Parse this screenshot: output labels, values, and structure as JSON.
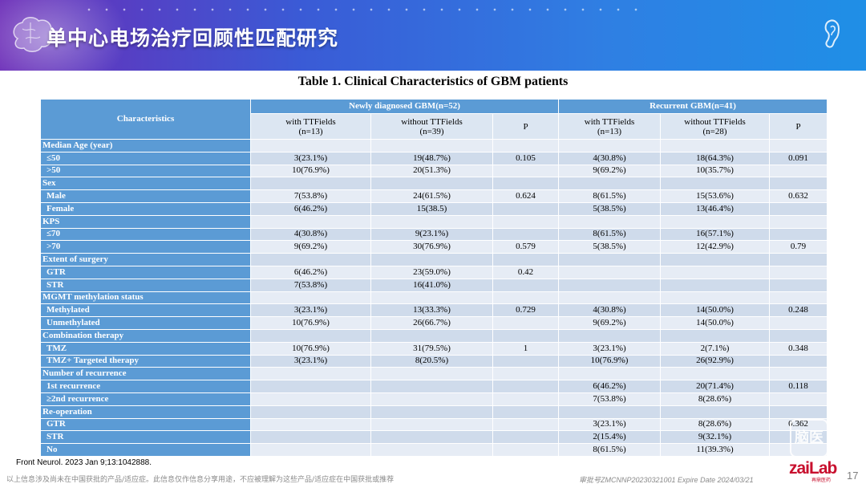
{
  "header": {
    "title": "单中心电场治疗回顾性匹配研究"
  },
  "icons": [
    "brain-icon",
    "ear-icon"
  ],
  "colors": {
    "header_start": "#6a2bb7",
    "header_end": "#1f8fe6",
    "table_header": "#5b9bd5",
    "row_light": "#e6ecf5",
    "row_dark": "#cfdbeb",
    "logo": "#c8102e"
  },
  "table": {
    "title": "Table 1. Clinical Characteristics of GBM patients",
    "characteristics_label": "Characteristics",
    "groups": [
      "Newly diagnosed GBM(n=52)",
      "Recurrent GBM(n=41)"
    ],
    "sub_headers": [
      [
        "with TTFields",
        "(n=13)"
      ],
      [
        "without TTFields",
        "(n=39)"
      ],
      [
        "P",
        ""
      ],
      [
        "with TTFields",
        "(n=13)"
      ],
      [
        "without TTFields",
        "(n=28)"
      ],
      [
        "P",
        ""
      ]
    ],
    "rows": [
      {
        "label": "Median Age (year)",
        "section": true,
        "cells": [
          "",
          "",
          "",
          "",
          "",
          ""
        ]
      },
      {
        "label": "≤50",
        "section": false,
        "cells": [
          "3(23.1%)",
          "19(48.7%)",
          "0.105",
          "4(30.8%)",
          "18(64.3%)",
          "0.091"
        ]
      },
      {
        "label": ">50",
        "section": false,
        "cells": [
          "10(76.9%)",
          "20(51.3%)",
          "",
          "9(69.2%)",
          "10(35.7%)",
          ""
        ]
      },
      {
        "label": "Sex",
        "section": true,
        "cells": [
          "",
          "",
          "",
          "",
          "",
          ""
        ]
      },
      {
        "label": "Male",
        "section": false,
        "cells": [
          "7(53.8%)",
          "24(61.5%)",
          "0.624",
          "8(61.5%)",
          "15(53.6%)",
          "0.632"
        ]
      },
      {
        "label": "Female",
        "section": false,
        "cells": [
          "6(46.2%)",
          "15(38.5)",
          "",
          "5(38.5%)",
          "13(46.4%)",
          ""
        ]
      },
      {
        "label": "KPS",
        "section": true,
        "cells": [
          "",
          "",
          "",
          "",
          "",
          ""
        ]
      },
      {
        "label": "≤70",
        "section": false,
        "cells": [
          "4(30.8%)",
          "9(23.1%)",
          "",
          "8(61.5%)",
          "16(57.1%)",
          ""
        ]
      },
      {
        "label": ">70",
        "section": false,
        "cells": [
          "9(69.2%)",
          "30(76.9%)",
          "0.579",
          "5(38.5%)",
          "12(42.9%)",
          "0.79"
        ]
      },
      {
        "label": "Extent of surgery",
        "section": true,
        "cells": [
          "",
          "",
          "",
          "",
          "",
          ""
        ]
      },
      {
        "label": "GTR",
        "section": false,
        "cells": [
          "6(46.2%)",
          "23(59.0%)",
          "0.42",
          "",
          "",
          ""
        ]
      },
      {
        "label": "STR",
        "section": false,
        "cells": [
          "7(53.8%)",
          "16(41.0%)",
          "",
          "",
          "",
          ""
        ]
      },
      {
        "label": "MGMT methylation status",
        "section": true,
        "cells": [
          "",
          "",
          "",
          "",
          "",
          ""
        ]
      },
      {
        "label": "Methylated",
        "section": false,
        "cells": [
          "3(23.1%)",
          "13(33.3%)",
          "0.729",
          "4(30.8%)",
          "14(50.0%)",
          "0.248"
        ]
      },
      {
        "label": "Unmethylated",
        "section": false,
        "cells": [
          "10(76.9%)",
          "26(66.7%)",
          "",
          "9(69.2%)",
          "14(50.0%)",
          ""
        ]
      },
      {
        "label": "Combination therapy",
        "section": true,
        "cells": [
          "",
          "",
          "",
          "",
          "",
          ""
        ]
      },
      {
        "label": "TMZ",
        "section": false,
        "cells": [
          "10(76.9%)",
          "31(79.5%)",
          "1",
          "3(23.1%)",
          "2(7.1%)",
          "0.348"
        ]
      },
      {
        "label": "TMZ+ Targeted therapy",
        "section": false,
        "cells": [
          "3(23.1%)",
          "8(20.5%)",
          "",
          "10(76.9%)",
          "26(92.9%)",
          ""
        ]
      },
      {
        "label": "Number of recurrence",
        "section": true,
        "cells": [
          "",
          "",
          "",
          "",
          "",
          ""
        ]
      },
      {
        "label": "1st recurrence",
        "section": false,
        "cells": [
          "",
          "",
          "",
          "6(46.2%)",
          "20(71.4%)",
          "0.118"
        ]
      },
      {
        "label": "≥2nd recurrence",
        "section": false,
        "cells": [
          "",
          "",
          "",
          "7(53.8%)",
          "8(28.6%)",
          ""
        ]
      },
      {
        "label": "Re-operation",
        "section": true,
        "cells": [
          "",
          "",
          "",
          "",
          "",
          ""
        ]
      },
      {
        "label": "GTR",
        "section": false,
        "cells": [
          "",
          "",
          "",
          "3(23.1%)",
          "8(28.6%)",
          "0.362"
        ]
      },
      {
        "label": "STR",
        "section": false,
        "cells": [
          "",
          "",
          "",
          "2(15.4%)",
          "9(32.1%)",
          ""
        ]
      },
      {
        "label": "No",
        "section": false,
        "cells": [
          "",
          "",
          "",
          "8(61.5%)",
          "11(39.3%)",
          ""
        ]
      }
    ]
  },
  "footer": {
    "citation": "Front Neurol. 2023 Jan 9;13:1042888.",
    "disclaimer": "以上信息涉及尚未在中国获批的产品/适应症。此信息仅作信息分享用途，不应被理解为这些产品/适应症在中国获批或推荐",
    "approval": "审批号ZMCNNP20230321001 Expire Date 2024/03/21",
    "logo": "zaiLab",
    "logo_sub": "再鼎医药",
    "page_number": "17",
    "watermark": "脑医"
  }
}
